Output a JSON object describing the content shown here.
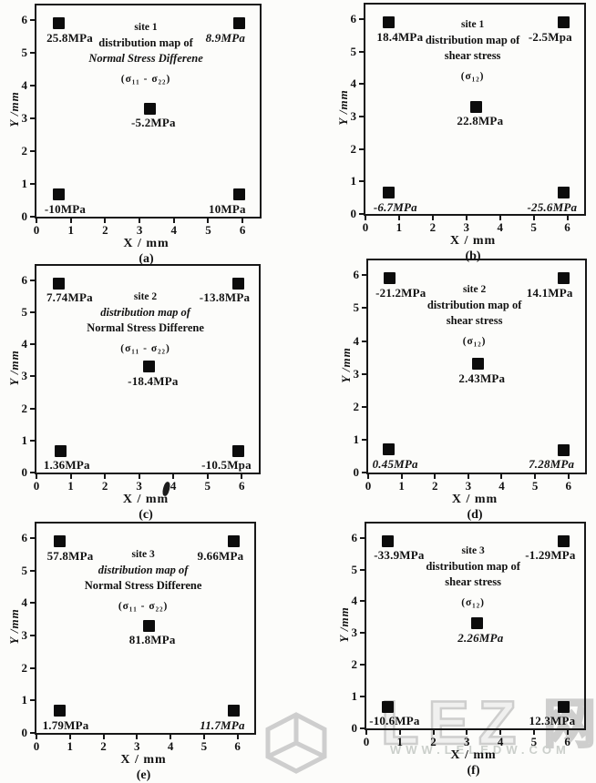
{
  "figure": {
    "watermark": {
      "logo_letters": "LEZ",
      "logo_cjk": "网",
      "url": "WWW.LELEDW.COM"
    }
  },
  "chart_data": [
    {
      "type": "scatter",
      "panel_label": "(a)",
      "title_lines": [
        "site 1",
        "distribution map of",
        "Normal Stress Differene",
        "(σ₁₁ - σ₂₂)"
      ],
      "italic_title_lines": [
        2
      ],
      "xlabel": "X / mm",
      "ylabel": "Y /mm",
      "xlim": [
        0,
        6.5
      ],
      "ylim": [
        0,
        6.45
      ],
      "xticks": [
        0,
        1,
        2,
        3,
        4,
        5,
        6
      ],
      "yticks": [
        0,
        1,
        2,
        3,
        4,
        5,
        6
      ],
      "points": [
        {
          "x": 0.65,
          "y": 5.9,
          "value": "25.8MPa",
          "pos": "tl",
          "italic": false
        },
        {
          "x": 5.9,
          "y": 5.9,
          "value": "8.9MPa",
          "pos": "tr",
          "italic": true
        },
        {
          "x": 3.3,
          "y": 3.3,
          "value": "-5.2MPa",
          "pos": "c",
          "italic": false
        },
        {
          "x": 0.65,
          "y": 0.68,
          "value": "-10MPa",
          "pos": "bl",
          "italic": false
        },
        {
          "x": 5.9,
          "y": 0.68,
          "value": "10MPa",
          "pos": "br",
          "italic": false
        }
      ]
    },
    {
      "type": "scatter",
      "panel_label": "(b)",
      "title_lines": [
        "site 1",
        "distribution map of",
        "shear stress",
        "(σ₁₂)"
      ],
      "italic_title_lines": [],
      "xlabel": "X / mm",
      "ylabel": "Y /mm",
      "xlim": [
        0,
        6.5
      ],
      "ylim": [
        0,
        6.45
      ],
      "xticks": [
        0,
        1,
        2,
        3,
        4,
        5,
        6
      ],
      "yticks": [
        0,
        1,
        2,
        3,
        4,
        5,
        6
      ],
      "points": [
        {
          "x": 0.7,
          "y": 5.9,
          "value": "18.4MPa",
          "pos": "tl",
          "italic": false
        },
        {
          "x": 5.9,
          "y": 5.9,
          "value": "-2.5Mpa",
          "pos": "tr",
          "italic": false
        },
        {
          "x": 3.3,
          "y": 3.3,
          "value": "22.8MPa",
          "pos": "c",
          "italic": false
        },
        {
          "x": 0.7,
          "y": 0.65,
          "value": "-6.7MPa",
          "pos": "bl",
          "italic": true
        },
        {
          "x": 5.9,
          "y": 0.65,
          "value": "-25.6MPa",
          "pos": "br",
          "italic": true
        }
      ]
    },
    {
      "type": "scatter",
      "panel_label": "(c)",
      "title_lines": [
        "site 2",
        "distribution map of",
        "Normal Stress Differene",
        "(σ₁₁ - σ₂₂)"
      ],
      "italic_title_lines": [
        1
      ],
      "xlabel": "X / mm",
      "ylabel": "Y /mm",
      "xlim": [
        0,
        6.5
      ],
      "ylim": [
        0,
        6.45
      ],
      "xticks": [
        0,
        1,
        2,
        3,
        4,
        5,
        6
      ],
      "yticks": [
        0,
        1,
        2,
        3,
        4,
        5,
        6
      ],
      "points": [
        {
          "x": 0.65,
          "y": 5.9,
          "value": "7.74MPa",
          "pos": "tl",
          "italic": false
        },
        {
          "x": 5.9,
          "y": 5.9,
          "value": "-13.8MPa",
          "pos": "tr",
          "italic": false
        },
        {
          "x": 3.3,
          "y": 3.3,
          "value": "-18.4MPa",
          "pos": "c",
          "italic": false
        },
        {
          "x": 0.7,
          "y": 0.68,
          "value": "1.36MPa",
          "pos": "bl",
          "italic": false
        },
        {
          "x": 5.9,
          "y": 0.68,
          "value": "-10.5Mpa",
          "pos": "br",
          "italic": false
        }
      ]
    },
    {
      "type": "scatter",
      "panel_label": "(d)",
      "title_lines": [
        "site 2",
        "distribution map of",
        "shear stress",
        "(σ₁₂)"
      ],
      "italic_title_lines": [],
      "xlabel": "X / mm",
      "ylabel": "Y /mm",
      "xlim": [
        0,
        6.5
      ],
      "ylim": [
        0,
        6.45
      ],
      "xticks": [
        0,
        1,
        2,
        3,
        4,
        5,
        6
      ],
      "yticks": [
        0,
        1,
        2,
        3,
        4,
        5,
        6
      ],
      "points": [
        {
          "x": 0.65,
          "y": 5.9,
          "value": "-21.2MPa",
          "pos": "tl",
          "italic": false
        },
        {
          "x": 5.85,
          "y": 5.9,
          "value": "14.1MPa",
          "pos": "tr",
          "italic": false
        },
        {
          "x": 3.3,
          "y": 3.3,
          "value": "2.43MPa",
          "pos": "c",
          "italic": false
        },
        {
          "x": 0.62,
          "y": 0.7,
          "value": "0.45MPa",
          "pos": "bl",
          "italic": true
        },
        {
          "x": 5.85,
          "y": 0.68,
          "value": "7.28MPa",
          "pos": "br",
          "italic": true
        }
      ]
    },
    {
      "type": "scatter",
      "panel_label": "(e)",
      "title_lines": [
        "site 3",
        "distribution map of",
        "Normal Stress Differene",
        "(σ₁₁ - σ₂₂)"
      ],
      "italic_title_lines": [
        1
      ],
      "xlabel": "X / mm",
      "ylabel": "Y /mm",
      "xlim": [
        0,
        6.5
      ],
      "ylim": [
        0,
        6.45
      ],
      "xticks": [
        0,
        1,
        2,
        3,
        4,
        5,
        6
      ],
      "yticks": [
        0,
        1,
        2,
        3,
        4,
        5,
        6
      ],
      "points": [
        {
          "x": 0.68,
          "y": 5.9,
          "value": "57.8MPa",
          "pos": "tl",
          "italic": false
        },
        {
          "x": 5.9,
          "y": 5.9,
          "value": "9.66MPa",
          "pos": "tr",
          "italic": false
        },
        {
          "x": 3.35,
          "y": 3.3,
          "value": "81.8MPa",
          "pos": "c",
          "italic": false
        },
        {
          "x": 0.68,
          "y": 0.68,
          "value": "1.79MPa",
          "pos": "bl",
          "italic": false
        },
        {
          "x": 5.9,
          "y": 0.68,
          "value": "11.7MPa",
          "pos": "br",
          "italic": true
        }
      ]
    },
    {
      "type": "scatter",
      "panel_label": "(f)",
      "title_lines": [
        "site 3",
        "distribution map of",
        "shear stress",
        "(σ₁₂)"
      ],
      "italic_title_lines": [],
      "xlabel": "X / mm",
      "ylabel": "Y /mm",
      "xlim": [
        0,
        6.5
      ],
      "ylim": [
        0,
        6.45
      ],
      "xticks": [
        0,
        1,
        2,
        3,
        4,
        5,
        6
      ],
      "yticks": [
        0,
        1,
        2,
        3,
        4,
        5,
        6
      ],
      "points": [
        {
          "x": 0.65,
          "y": 5.9,
          "value": "-33.9MPa",
          "pos": "tl",
          "italic": false
        },
        {
          "x": 5.9,
          "y": 5.9,
          "value": "-1.29MPa",
          "pos": "tr",
          "italic": false
        },
        {
          "x": 3.3,
          "y": 3.3,
          "value": "2.26MPa",
          "pos": "c",
          "italic": true
        },
        {
          "x": 0.65,
          "y": 0.68,
          "value": "-10.6MPa",
          "pos": "bl",
          "italic": false
        },
        {
          "x": 5.9,
          "y": 0.68,
          "value": "12.3MPa",
          "pos": "br",
          "italic": false
        }
      ]
    }
  ]
}
